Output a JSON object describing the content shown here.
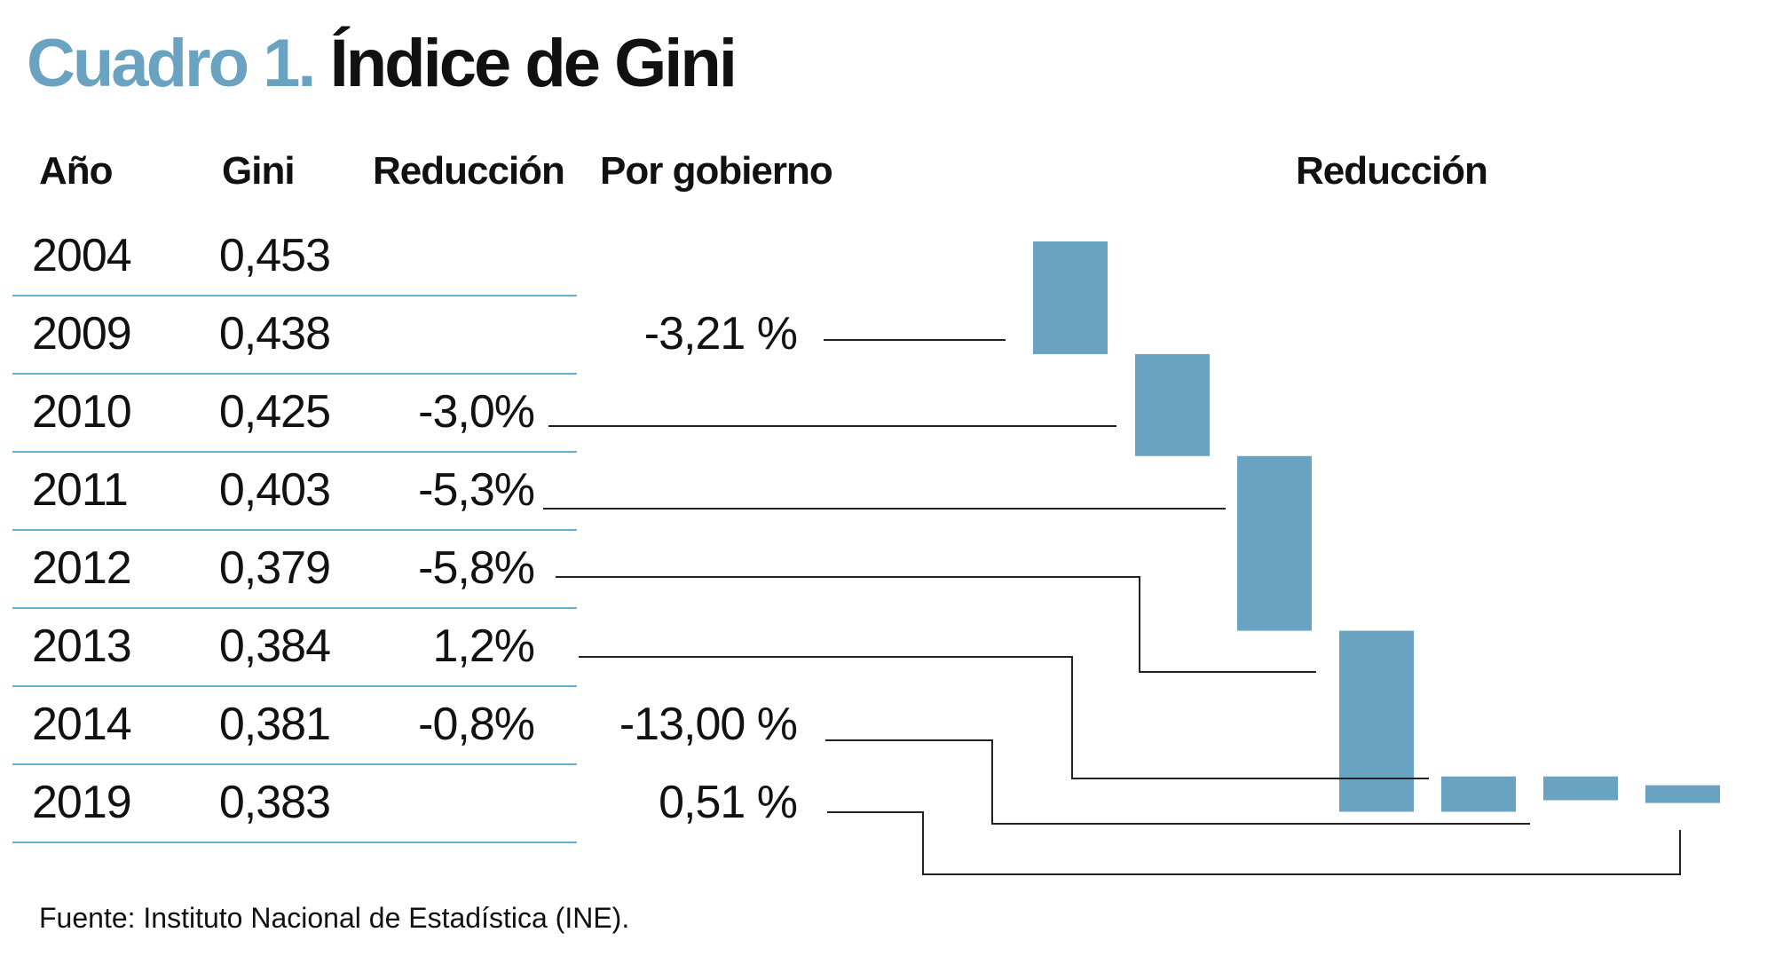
{
  "title": {
    "prefix": "Cuadro 1.",
    "text": "Índice de Gini"
  },
  "table": {
    "headers": {
      "year": "Año",
      "gini": "Gini",
      "reduction": "Reducción",
      "government": "Por gobierno"
    },
    "rows": [
      {
        "year": "2004",
        "gini": "0,453",
        "reduction": "",
        "government": ""
      },
      {
        "year": "2009",
        "gini": "0,438",
        "reduction": "",
        "government": "-3,21 %"
      },
      {
        "year": "2010",
        "gini": "0,425",
        "reduction": "-3,0%",
        "government": ""
      },
      {
        "year": "2011",
        "gini": "0,403",
        "reduction": "-5,3%",
        "government": ""
      },
      {
        "year": "2012",
        "gini": "0,379",
        "reduction": "-5,8%",
        "government": ""
      },
      {
        "year": "2013",
        "gini": "0,384",
        "reduction": "1,2%",
        "government": ""
      },
      {
        "year": "2014",
        "gini": "0,381",
        "reduction": "-0,8%",
        "government": "-13,00 %"
      },
      {
        "year": "2019",
        "gini": "0,383",
        "reduction": "",
        "government": "0,51 %"
      }
    ]
  },
  "chart_data": {
    "type": "bar",
    "title": "Reducción",
    "bar_color": "#6aa3c1",
    "bars": [
      {
        "from": 2004,
        "to": 2009,
        "percent": -3.21
      },
      {
        "from": 2009,
        "to": 2010,
        "percent": -3.0
      },
      {
        "from": 2010,
        "to": 2011,
        "percent": -5.3
      },
      {
        "from": 2011,
        "to": 2012,
        "percent": -5.8
      },
      {
        "from": 2012,
        "to": 2013,
        "percent": 1.2
      },
      {
        "from": 2013,
        "to": 2014,
        "percent": -0.8
      },
      {
        "from": 2014,
        "to": 2019,
        "percent": 0.51
      }
    ],
    "government_periods": [
      {
        "label": "-3,21 %",
        "years": "2004-2009"
      },
      {
        "label": "-13,00 %",
        "years": "2009-2014"
      },
      {
        "label": "0,51 %",
        "years": "2014-2019"
      }
    ]
  },
  "source": "Fuente: Instituto Nacional de Estadística (INE)."
}
